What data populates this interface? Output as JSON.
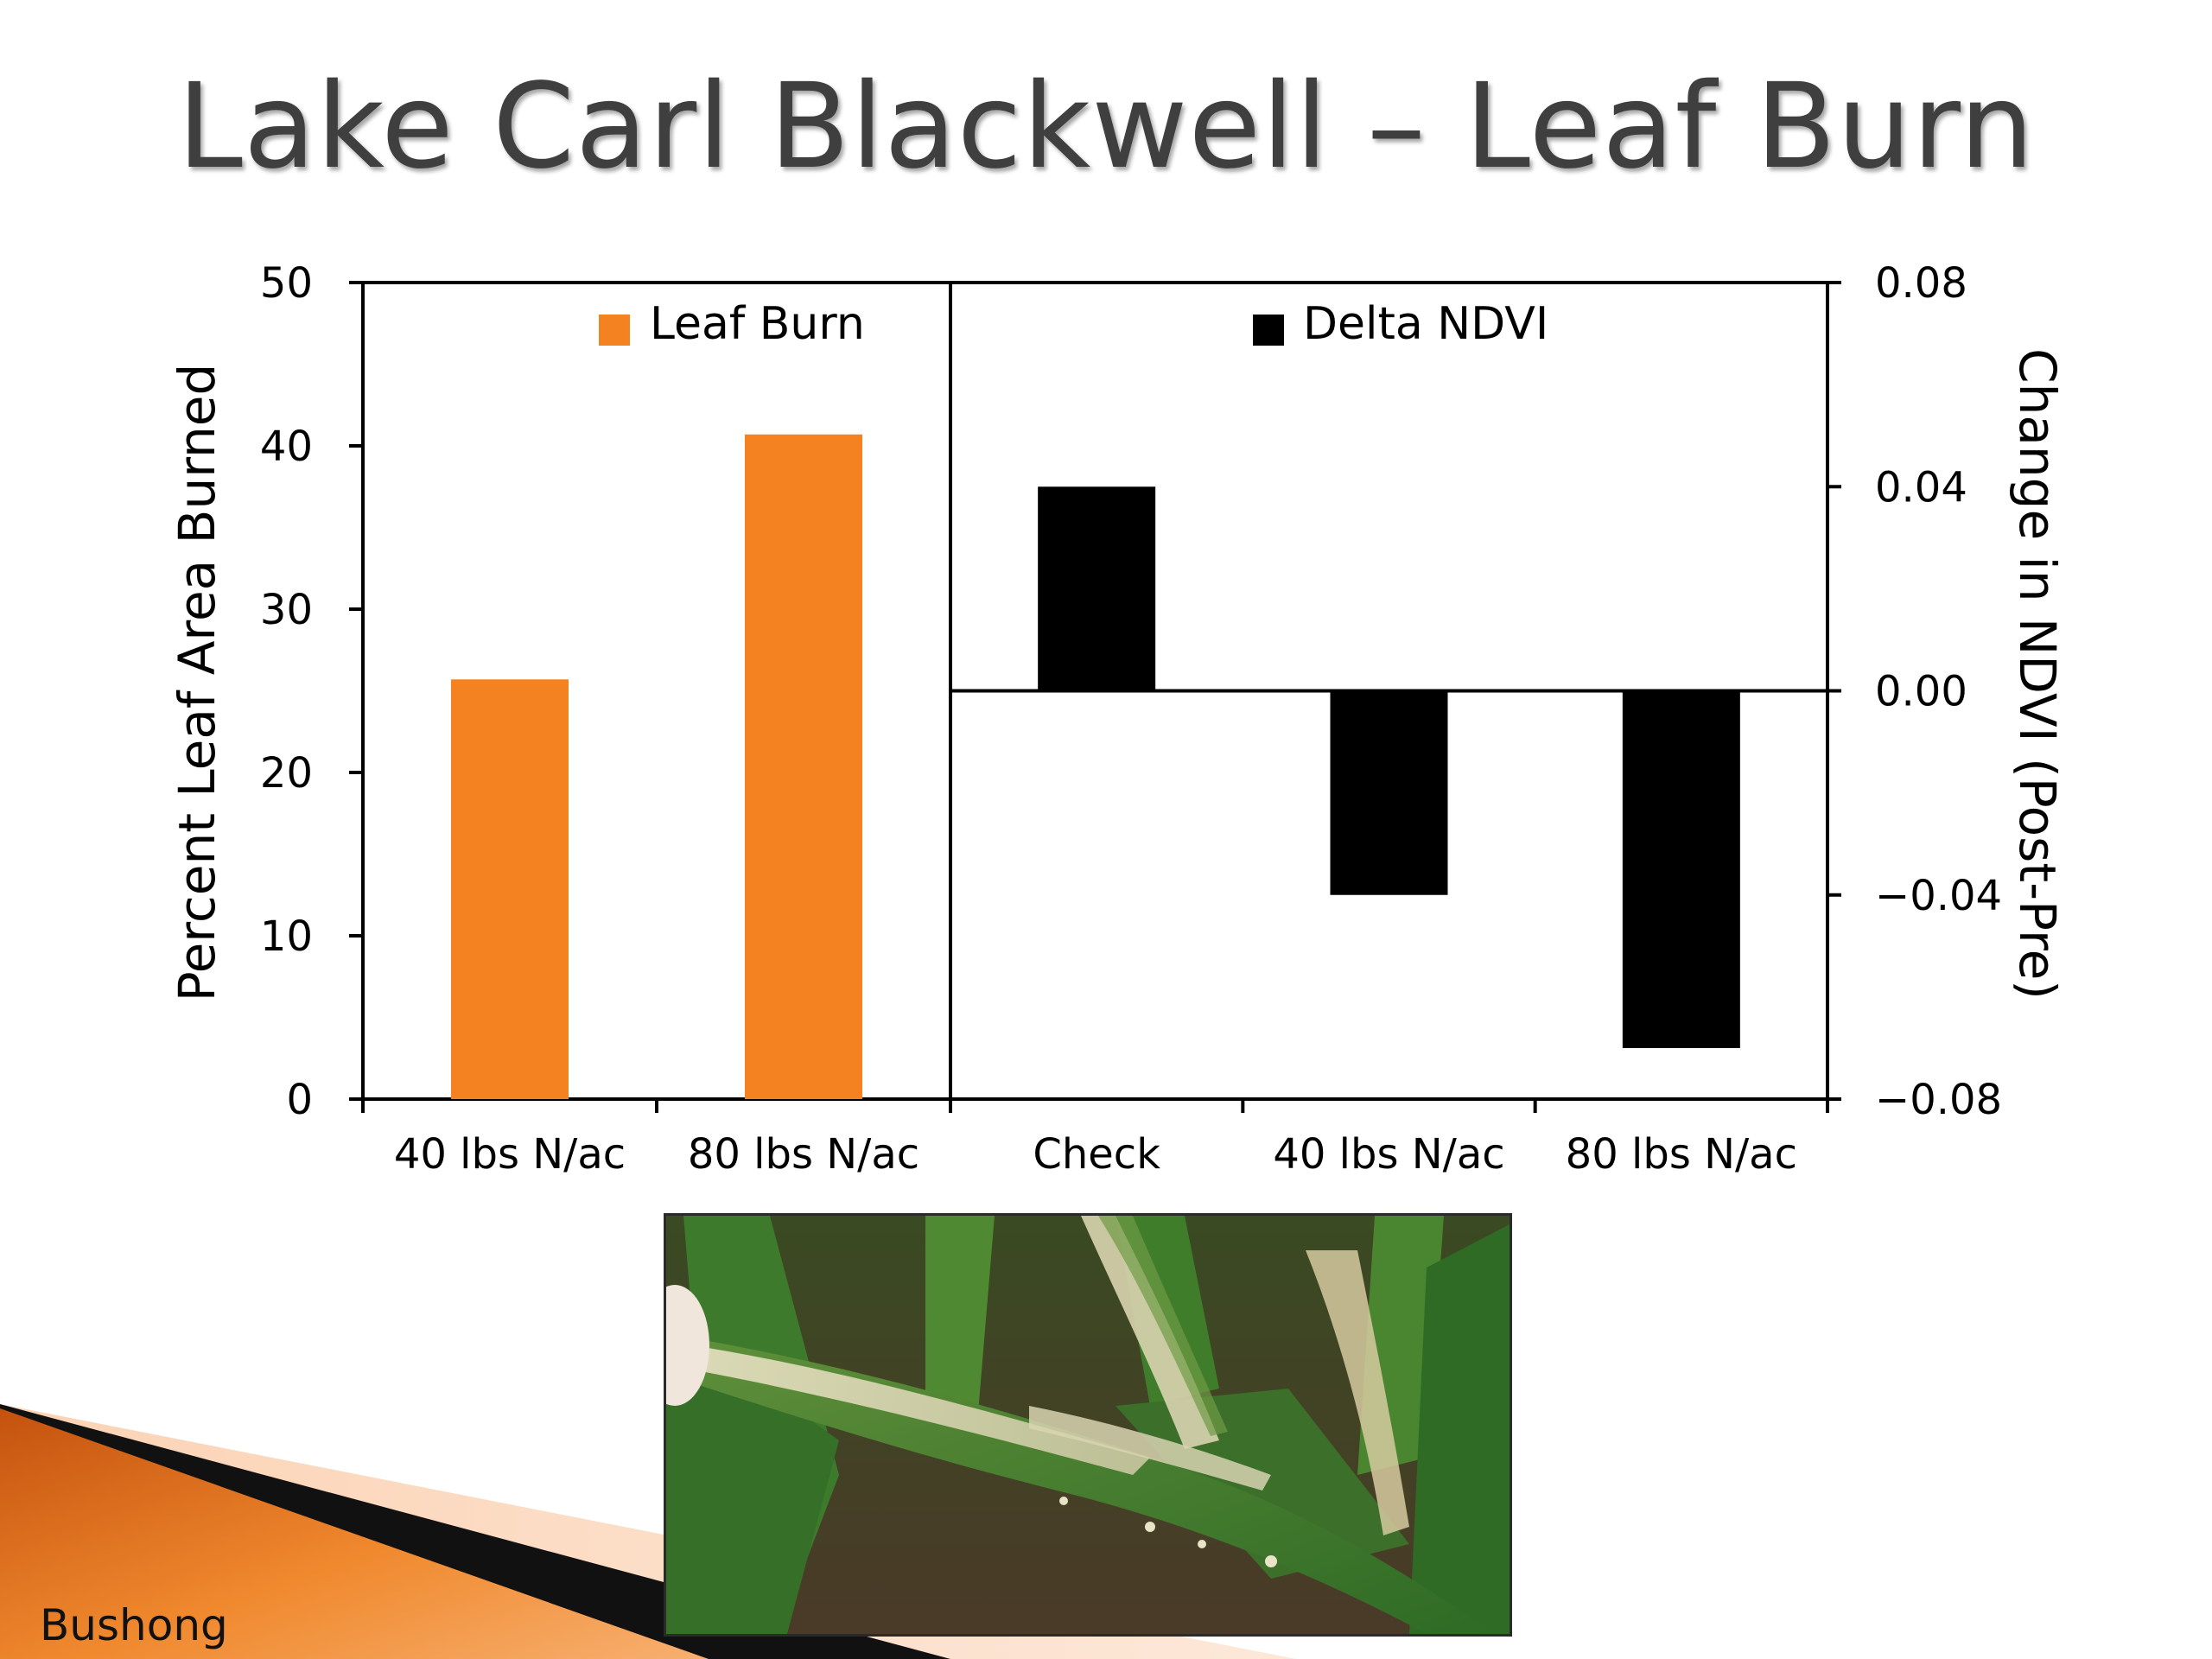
{
  "slide": {
    "title": "Lake Carl Blackwell – Leaf Burn",
    "author": "Bushong"
  },
  "photo": {
    "description_icon": "corn-leaf-burn-photo"
  },
  "colors": {
    "leaf_burn": "#f58220",
    "delta_ndvi": "#000000",
    "accent_orange": "#e8761e",
    "title": "#3f3f3f"
  },
  "chart_data": [
    {
      "type": "bar",
      "categories": [
        "40 lbs N/ac",
        "80 lbs N/ac"
      ],
      "series": [
        {
          "name": "Leaf Burn",
          "values": [
            25.7,
            40.7
          ],
          "color": "#f58220"
        }
      ],
      "xlabel": "",
      "ylabel": "Percent Leaf Area Burned",
      "ylim": [
        0,
        50
      ],
      "yticks": [
        "0",
        "10",
        "20",
        "30",
        "40",
        "50"
      ],
      "ytick_values": [
        0,
        10,
        20,
        30,
        40,
        50
      ],
      "legend": "top",
      "grid": false
    },
    {
      "type": "bar",
      "categories": [
        "Check",
        "40 lbs N/ac",
        "80 lbs N/ac"
      ],
      "series": [
        {
          "name": "Delta NDVI",
          "values": [
            0.04,
            -0.04,
            -0.07
          ],
          "color": "#000000"
        }
      ],
      "xlabel": "",
      "ylabel": "Change in NDVI (Post-Pre)",
      "ylim": [
        -0.08,
        0.08
      ],
      "yticks": [
        "0.08",
        "0.04",
        "0.00",
        "−0.04",
        "−0.08"
      ],
      "ytick_values": [
        0.08,
        0.04,
        0.0,
        -0.04,
        -0.08
      ],
      "legend": "top",
      "grid": false
    }
  ]
}
